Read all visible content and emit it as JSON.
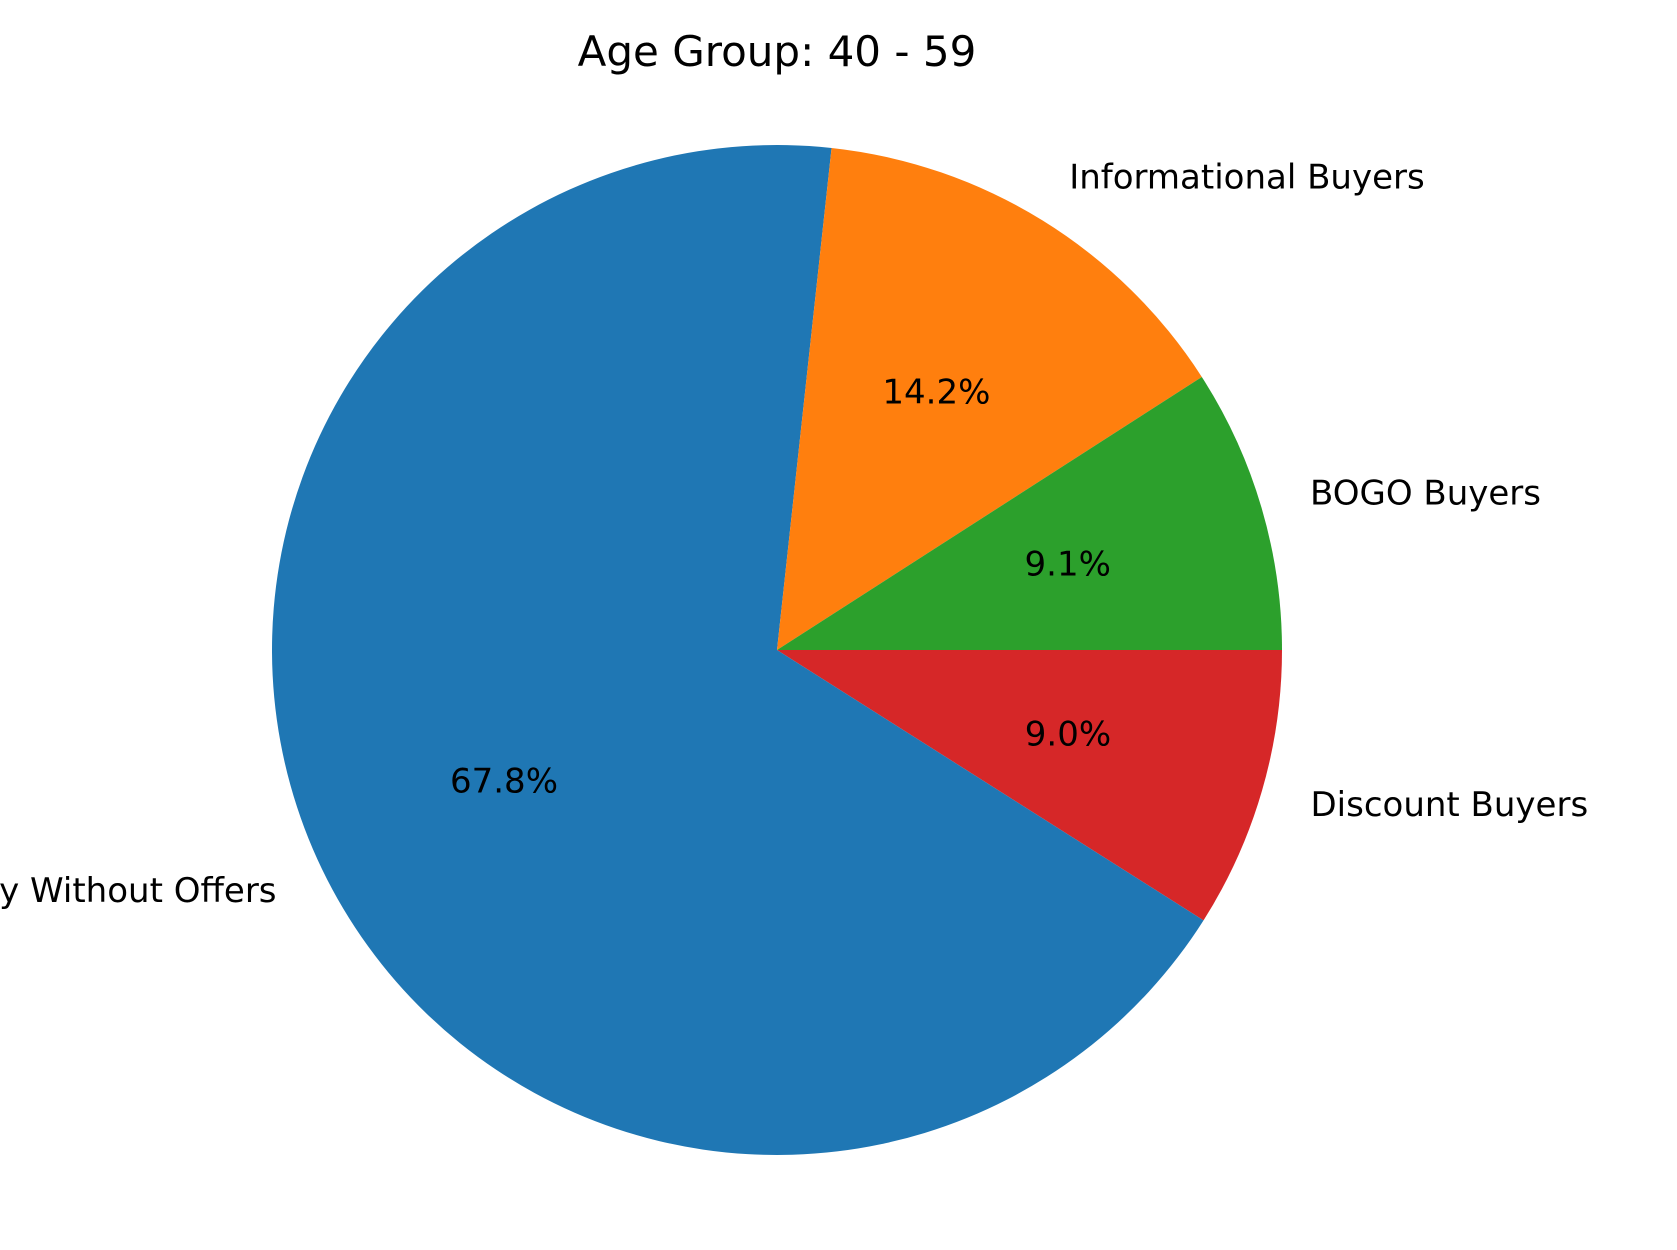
{
  "chart_data": {
    "type": "pie",
    "title": "Age Group: 40 - 59",
    "categories": [
      "Discount Buyers",
      "Buy Without Offers",
      "Informational Buyers",
      "BOGO Buyers"
    ],
    "values": [
      9.0,
      67.8,
      14.2,
      9.1
    ],
    "value_labels": [
      "9.0%",
      "67.8%",
      "14.2%",
      "9.1%"
    ],
    "colors": [
      "#d62728",
      "#1f77b4",
      "#ff7f0e",
      "#2ca02c"
    ],
    "start_angle_deg": 0,
    "direction": "clockwise",
    "legend": "none"
  }
}
